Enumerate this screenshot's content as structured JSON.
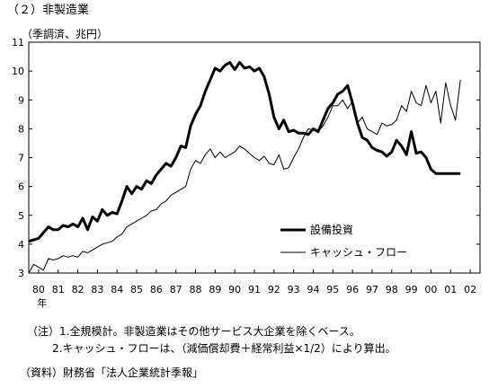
{
  "title": "（２）非製造業",
  "units": "（季調済、兆円）",
  "notes": {
    "note1": "（注）1.全規模計。非製造業はその他サービス大企業を除くベース。",
    "note2": "2.キャッシュ・フローは、（減価償却費＋経常利益×1/2）により算出。"
  },
  "source": "（資料）財務省「法人企業統計季報」",
  "chart_data": {
    "type": "line",
    "ylim": [
      3,
      11
    ],
    "yticks": [
      3,
      4,
      5,
      6,
      7,
      8,
      9,
      10,
      11
    ],
    "xlim": [
      1980,
      2003
    ],
    "xticks": [
      "80",
      "81",
      "82",
      "83",
      "84",
      "85",
      "86",
      "87",
      "88",
      "89",
      "90",
      "91",
      "92",
      "93",
      "94",
      "95",
      "96",
      "97",
      "98",
      "99",
      "00",
      "01",
      "02"
    ],
    "xunit": "年",
    "legend_position": "center-right",
    "series": [
      {
        "name": "設備投資",
        "style": "bold",
        "color": "#000000",
        "x": [
          1980.0,
          1980.25,
          1980.5,
          1980.75,
          1981.0,
          1981.25,
          1981.5,
          1981.75,
          1982.0,
          1982.25,
          1982.5,
          1982.75,
          1983.0,
          1983.25,
          1983.5,
          1983.75,
          1984.0,
          1984.25,
          1984.5,
          1984.75,
          1985.0,
          1985.25,
          1985.5,
          1985.75,
          1986.0,
          1986.25,
          1986.5,
          1986.75,
          1987.0,
          1987.25,
          1987.5,
          1987.75,
          1988.0,
          1988.25,
          1988.5,
          1988.75,
          1989.0,
          1989.25,
          1989.5,
          1989.75,
          1990.0,
          1990.25,
          1990.5,
          1990.75,
          1991.0,
          1991.25,
          1991.5,
          1991.75,
          1992.0,
          1992.25,
          1992.5,
          1992.75,
          1993.0,
          1993.25,
          1993.5,
          1993.75,
          1994.0,
          1994.25,
          1994.5,
          1994.75,
          1995.0,
          1995.25,
          1995.5,
          1995.75,
          1996.0,
          1996.25,
          1996.5,
          1996.75,
          1997.0,
          1997.25,
          1997.5,
          1997.75,
          1998.0,
          1998.25,
          1998.5,
          1998.75,
          1999.0,
          1999.25,
          1999.5,
          1999.75,
          2000.0,
          2000.25,
          2000.5,
          2000.75,
          2001.0,
          2001.25,
          2001.5,
          2001.75,
          2002.0
        ],
        "values": [
          4.1,
          4.15,
          4.2,
          4.4,
          4.6,
          4.5,
          4.5,
          4.65,
          4.6,
          4.7,
          4.6,
          4.9,
          4.5,
          4.95,
          4.8,
          5.2,
          5.0,
          5.1,
          5.05,
          5.5,
          6.0,
          5.75,
          6.0,
          5.9,
          6.2,
          6.1,
          6.4,
          6.6,
          6.8,
          6.7,
          7.0,
          7.4,
          7.35,
          8.1,
          8.5,
          8.8,
          9.3,
          9.7,
          10.1,
          10.0,
          10.2,
          10.3,
          10.05,
          10.3,
          10.1,
          10.15,
          10.0,
          10.1,
          9.8,
          9.2,
          8.4,
          8.0,
          8.3,
          7.9,
          7.95,
          7.85,
          7.85,
          7.8,
          8.0,
          7.9,
          8.3,
          8.7,
          8.9,
          9.2,
          9.3,
          9.5,
          8.9,
          8.2,
          7.7,
          7.6,
          7.35,
          7.25,
          7.2,
          7.05,
          7.2,
          7.6,
          7.4,
          7.1,
          7.9,
          7.15,
          7.2,
          7.0,
          6.6,
          6.45,
          6.45,
          6.45,
          6.45,
          6.45,
          6.45
        ]
      },
      {
        "name": "キャッシュ・フロー",
        "style": "thin",
        "color": "#000000",
        "x": [
          1980.0,
          1980.25,
          1980.5,
          1980.75,
          1981.0,
          1981.25,
          1981.5,
          1981.75,
          1982.0,
          1982.25,
          1982.5,
          1982.75,
          1983.0,
          1983.25,
          1983.5,
          1983.75,
          1984.0,
          1984.25,
          1984.5,
          1984.75,
          1985.0,
          1985.25,
          1985.5,
          1985.75,
          1986.0,
          1986.25,
          1986.5,
          1986.75,
          1987.0,
          1987.25,
          1987.5,
          1987.75,
          1988.0,
          1988.25,
          1988.5,
          1988.75,
          1989.0,
          1989.25,
          1989.5,
          1989.75,
          1990.0,
          1990.25,
          1990.5,
          1990.75,
          1991.0,
          1991.25,
          1991.5,
          1991.75,
          1992.0,
          1992.25,
          1992.5,
          1992.75,
          1993.0,
          1993.25,
          1993.5,
          1993.75,
          1994.0,
          1994.25,
          1994.5,
          1994.75,
          1995.0,
          1995.25,
          1995.5,
          1995.75,
          1996.0,
          1996.25,
          1996.5,
          1996.75,
          1997.0,
          1997.25,
          1997.5,
          1997.75,
          1998.0,
          1998.25,
          1998.5,
          1998.75,
          1999.0,
          1999.25,
          1999.5,
          1999.75,
          2000.0,
          2000.25,
          2000.5,
          2000.75,
          2001.0,
          2001.25,
          2001.5,
          2001.75,
          2002.0
        ],
        "values": [
          3.0,
          3.3,
          3.2,
          3.1,
          3.5,
          3.45,
          3.5,
          3.6,
          3.55,
          3.6,
          3.55,
          3.75,
          3.7,
          3.8,
          3.9,
          4.0,
          4.05,
          4.1,
          4.25,
          4.35,
          4.6,
          4.7,
          4.8,
          4.9,
          5.0,
          5.15,
          5.2,
          5.4,
          5.5,
          5.7,
          5.8,
          5.9,
          6.0,
          6.6,
          6.9,
          6.8,
          7.1,
          7.3,
          7.0,
          7.2,
          7.0,
          7.1,
          7.2,
          7.4,
          7.3,
          7.15,
          7.0,
          6.9,
          7.05,
          6.8,
          6.75,
          7.1,
          6.6,
          6.65,
          7.0,
          7.3,
          7.7,
          8.0,
          7.95,
          7.9,
          8.1,
          8.4,
          8.8,
          8.8,
          9.0,
          8.7,
          8.95,
          8.2,
          8.4,
          8.0,
          7.9,
          7.8,
          8.2,
          8.1,
          8.15,
          8.3,
          8.8,
          8.6,
          9.3,
          8.9,
          8.8,
          9.5,
          8.9,
          9.3,
          8.2,
          9.6,
          8.8,
          8.3,
          9.7
        ]
      }
    ]
  }
}
